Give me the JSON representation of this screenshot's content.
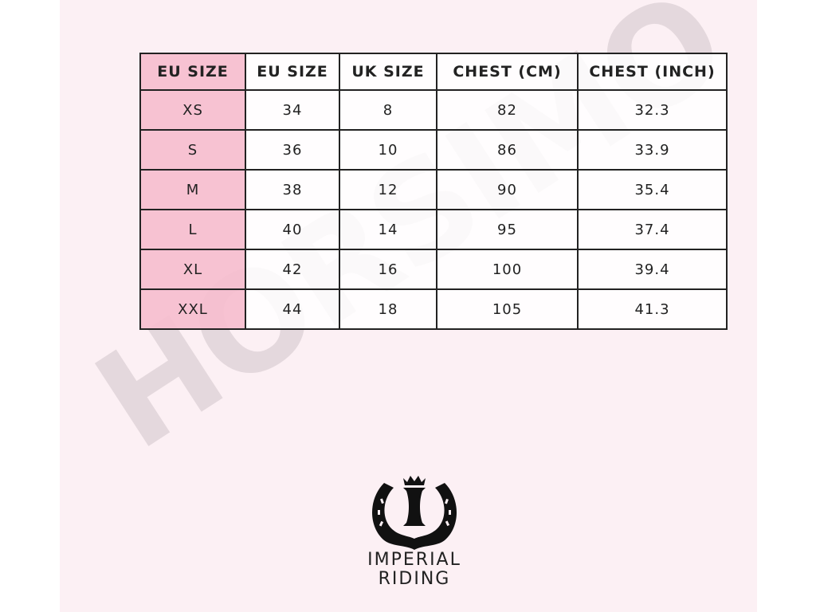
{
  "watermark": "HORSIMO",
  "table": {
    "headers": [
      "EU SIZE",
      "EU SIZE",
      "UK SIZE",
      "CHEST (CM)",
      "CHEST (INCH)"
    ],
    "rows": [
      [
        "XS",
        "34",
        "8",
        "82",
        "32.3"
      ],
      [
        "S",
        "36",
        "10",
        "86",
        "33.9"
      ],
      [
        "M",
        "38",
        "12",
        "90",
        "35.4"
      ],
      [
        "L",
        "40",
        "14",
        "95",
        "37.4"
      ],
      [
        "XL",
        "42",
        "16",
        "100",
        "39.4"
      ],
      [
        "XXL",
        "44",
        "18",
        "105",
        "41.3"
      ]
    ]
  },
  "logo": {
    "line1": "IMPERIAL",
    "line2": "RIDING"
  },
  "colors": {
    "accent_pink": "#f6bece",
    "background": "#fcf0f4",
    "border": "#222222"
  }
}
